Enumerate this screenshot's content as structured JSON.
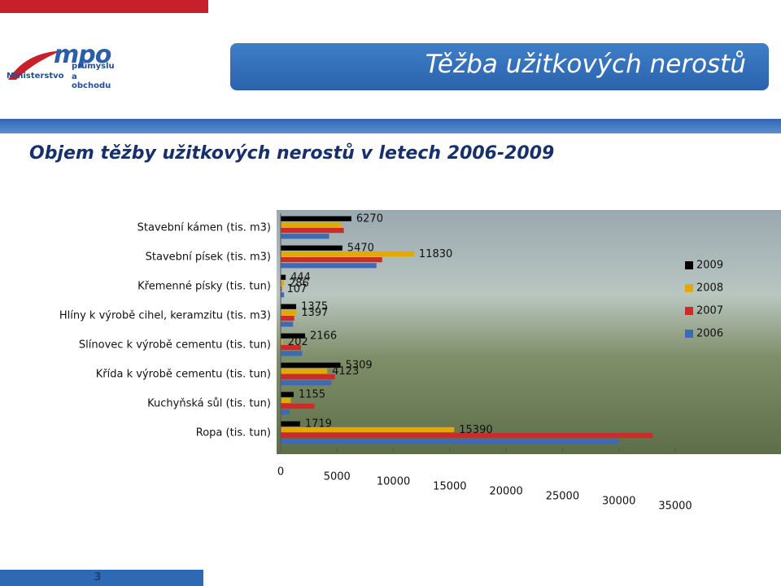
{
  "header": {
    "logo_mark": "mpo",
    "logo_lines": [
      "Ministerstvo",
      "průmyslu",
      "a obchodu"
    ],
    "title": "Těžba užitkových nerostů"
  },
  "heading": "Objem těžby užitkových nerostů v letech 2006-2009",
  "page_number": "3",
  "chart_data": {
    "type": "hbar",
    "categories": [
      "Stavební kámen (tis. m3)",
      "Stavební písek (tis. m3)",
      "Křemenné písky (tis. tun)",
      "Hlíny k výrobě cihel, keramzitu (tis. m3)",
      "Slínovec k výrobě cementu (tis. tun)",
      "Křída k výrobě cementu (tis. tun)",
      "Kuchyňská sůl (tis. tun)",
      "Ropa (tis. tun)"
    ],
    "series": [
      {
        "name": "2009",
        "color": "#000000",
        "values": [
          6270,
          5470,
          444,
          1375,
          2166,
          5309,
          1155,
          1719
        ],
        "value_labels": [
          "6270",
          "5470",
          "444",
          "1375",
          "2166",
          "5309",
          "1155",
          "1719"
        ]
      },
      {
        "name": "2008",
        "color": "#e0aa00",
        "values": [
          5400,
          11830,
          286,
          1397,
          202,
          4123,
          900,
          15390
        ],
        "value_labels": [
          null,
          "11830",
          "286",
          "1397",
          "202",
          "4123",
          null,
          "15390"
        ]
      },
      {
        "name": "2007",
        "color": "#cc2b2b",
        "values": [
          5600,
          9000,
          107,
          1200,
          1800,
          4800,
          3000,
          33000
        ],
        "value_labels": [
          null,
          null,
          "107",
          null,
          null,
          null,
          null,
          null
        ]
      },
      {
        "name": "2006",
        "color": "#3b6cb3",
        "values": [
          4300,
          8500,
          300,
          1100,
          1900,
          4500,
          800,
          30000
        ]
      }
    ],
    "xlim": [
      0,
      35000
    ],
    "xticks": [
      0,
      5000,
      10000,
      15000,
      20000,
      25000,
      30000,
      35000
    ],
    "legend": "right"
  }
}
